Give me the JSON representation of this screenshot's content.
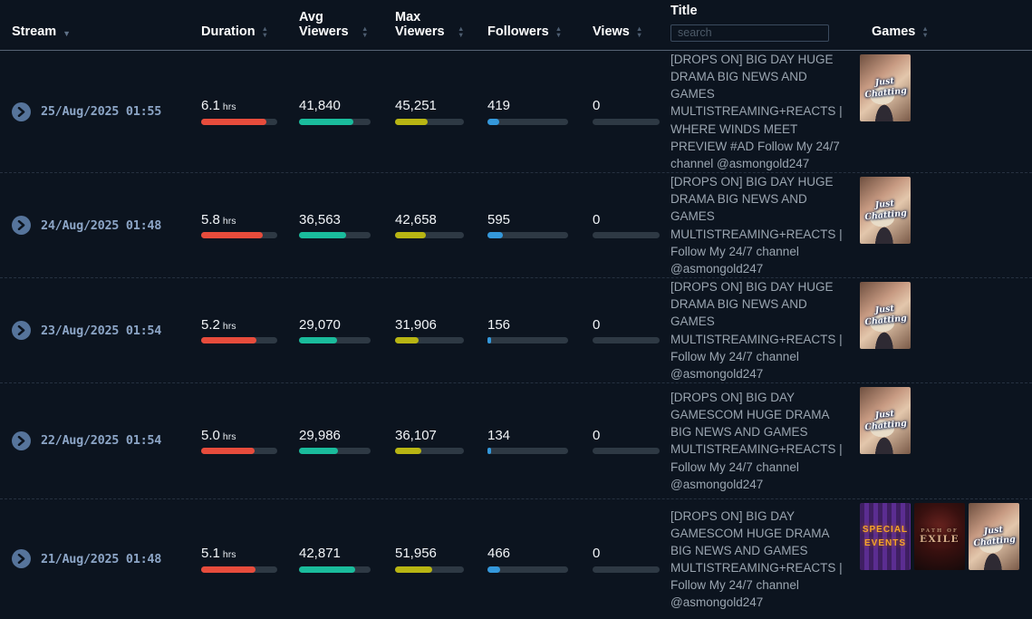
{
  "colors": {
    "background": "#0c141f",
    "bar_red": "#e74c3c",
    "bar_green": "#1abc9c",
    "bar_yellow": "#b8b513",
    "bar_blue": "#3498db",
    "bar_track": "#2e3944",
    "date_text": "#8ca5c6",
    "expand_icon_bg": "#56749b"
  },
  "header": {
    "stream_label": "Stream",
    "duration_label": "Duration",
    "avg_viewers_label": "Avg Viewers",
    "max_viewers_label": "Max Viewers",
    "followers_label": "Followers",
    "views_label": "Views",
    "title_label": "Title",
    "search_placeholder": "search",
    "games_label": "Games"
  },
  "rows": [
    {
      "stream": "25/Aug/2025 01:55",
      "duration_value": "6.1",
      "duration_unit": "hrs",
      "duration_pct": 86,
      "avg_viewers": "41,840",
      "avg_pct": 76,
      "max_viewers": "45,251",
      "max_pct": 48,
      "followers": "419",
      "followers_pct": 15,
      "views": "0",
      "views_pct": 0,
      "title": "[DROPS ON] BIG DAY HUGE DRAMA BIG NEWS AND GAMES MULTISTREAMING+REACTS | WHERE WINDS MEET PREVIEW #AD Follow My 24/7 channel @asmongold247",
      "games": [
        {
          "name": "Just Chatting"
        }
      ]
    },
    {
      "stream": "24/Aug/2025 01:48",
      "duration_value": "5.8",
      "duration_unit": "hrs",
      "duration_pct": 81,
      "avg_viewers": "36,563",
      "avg_pct": 66,
      "max_viewers": "42,658",
      "max_pct": 45,
      "followers": "595",
      "followers_pct": 19,
      "views": "0",
      "views_pct": 0,
      "title": "[DROPS ON] BIG DAY HUGE DRAMA BIG NEWS AND GAMES MULTISTREAMING+REACTS | Follow My 24/7 channel @asmongold247",
      "games": [
        {
          "name": "Just Chatting"
        }
      ]
    },
    {
      "stream": "23/Aug/2025 01:54",
      "duration_value": "5.2",
      "duration_unit": "hrs",
      "duration_pct": 73,
      "avg_viewers": "29,070",
      "avg_pct": 53,
      "max_viewers": "31,906",
      "max_pct": 34,
      "followers": "156",
      "followers_pct": 5,
      "views": "0",
      "views_pct": 0,
      "title": "[DROPS ON] BIG DAY HUGE DRAMA BIG NEWS AND GAMES MULTISTREAMING+REACTS | Follow My 24/7 channel @asmongold247",
      "games": [
        {
          "name": "Just Chatting"
        }
      ]
    },
    {
      "stream": "22/Aug/2025 01:54",
      "duration_value": "5.0",
      "duration_unit": "hrs",
      "duration_pct": 70,
      "avg_viewers": "29,986",
      "avg_pct": 54,
      "max_viewers": "36,107",
      "max_pct": 38,
      "followers": "134",
      "followers_pct": 4,
      "views": "0",
      "views_pct": 0,
      "title": "[DROPS ON] BIG DAY GAMESCOM HUGE DRAMA BIG NEWS AND GAMES MULTISTREAMING+REACTS | Follow My 24/7 channel @asmongold247",
      "games": [
        {
          "name": "Just Chatting"
        }
      ]
    },
    {
      "stream": "21/Aug/2025 01:48",
      "duration_value": "5.1",
      "duration_unit": "hrs",
      "duration_pct": 72,
      "avg_viewers": "42,871",
      "avg_pct": 78,
      "max_viewers": "51,956",
      "max_pct": 54,
      "followers": "466",
      "followers_pct": 16,
      "views": "0",
      "views_pct": 0,
      "title": "[DROPS ON] BIG DAY GAMESCOM HUGE DRAMA BIG NEWS AND GAMES MULTISTREAMING+REACTS | Follow My 24/7 channel @asmongold247",
      "games": [
        {
          "name": "SPECIAL EVENTS"
        },
        {
          "name": "EXILE"
        },
        {
          "name": "Just Chatting"
        }
      ]
    }
  ]
}
